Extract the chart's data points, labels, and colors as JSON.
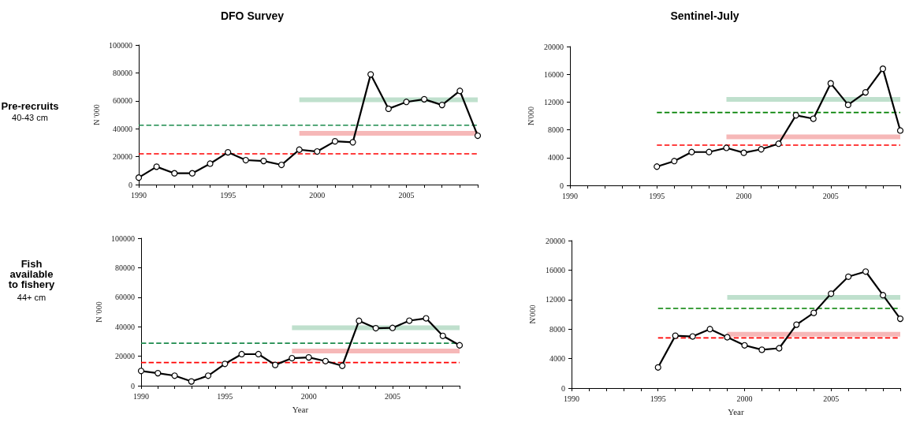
{
  "chart_data": [
    {
      "type": "line",
      "title": "DFO Survey",
      "ylabel": "N '000",
      "annotations": [
        "Pre-recruits",
        "40-43 cm"
      ],
      "xlim": [
        1990,
        2009
      ],
      "ylim": [
        0,
        100000
      ],
      "yticks": [
        0,
        20000,
        40000,
        60000,
        80000,
        100000
      ],
      "xticks": [
        1990,
        {
          "value": 1991,
          "label": null
        },
        {
          "value": 1992,
          "label": null
        },
        {
          "value": 1993,
          "label": null
        },
        {
          "value": 1994,
          "label": null
        },
        1995,
        {
          "value": 1996,
          "label": null
        },
        {
          "value": 1997,
          "label": null
        },
        {
          "value": 1998,
          "label": null
        },
        {
          "value": 1999,
          "label": null
        },
        2000,
        {
          "value": 2001,
          "label": null
        },
        {
          "value": 2002,
          "label": null
        },
        {
          "value": 2003,
          "label": null
        },
        {
          "value": 2004,
          "label": null
        },
        2005,
        {
          "value": 2006,
          "label": null
        },
        {
          "value": 2007,
          "label": null
        },
        {
          "value": 2008,
          "label": null
        },
        {
          "value": 2009,
          "label": null
        }
      ],
      "grid": false,
      "series": [
        {
          "color": "#1b8a4c",
          "line_style": "dashed",
          "marker": "none",
          "x": [
            1990,
            2009
          ],
          "values": [
            42500,
            42500
          ]
        },
        {
          "color": "#ff0000",
          "line_style": "dashed",
          "marker": "none",
          "x": [
            1990,
            2009
          ],
          "values": [
            22000,
            22000
          ]
        },
        {
          "color": "#bfe0cd",
          "line_style": "solid",
          "marker": "none",
          "x": [
            1999,
            2009
          ],
          "values": [
            60700,
            60700
          ]
        },
        {
          "color": "#f6b8b8",
          "line_style": "solid",
          "marker": "none",
          "x": [
            1999,
            2009
          ],
          "values": [
            36700,
            36700
          ]
        },
        {
          "color": "#000000",
          "line_style": "solid",
          "marker": "circle",
          "x": [
            1990,
            1991,
            1992,
            1993,
            1994,
            1995,
            1996,
            1997,
            1998,
            1999,
            2000,
            2001,
            2002,
            2003,
            2004,
            2005,
            2006,
            2007,
            2008,
            2009
          ],
          "values": [
            5000,
            12800,
            8100,
            8100,
            15000,
            23100,
            17500,
            16900,
            14100,
            25000,
            23700,
            31000,
            30300,
            78900,
            54300,
            59200,
            61100,
            57000,
            67100,
            35000
          ]
        }
      ]
    },
    {
      "type": "line",
      "title": "Sentinel-July",
      "ylabel": "N'000",
      "xlim": [
        1990,
        2009
      ],
      "ylim": [
        0,
        20000
      ],
      "yticks": [
        0,
        4000,
        8000,
        12000,
        16000,
        20000
      ],
      "xticks": [
        1990,
        {
          "value": 1991,
          "label": null
        },
        {
          "value": 1992,
          "label": null
        },
        {
          "value": 1993,
          "label": null
        },
        {
          "value": 1994,
          "label": null
        },
        1995,
        {
          "value": 1996,
          "label": null
        },
        {
          "value": 1997,
          "label": null
        },
        {
          "value": 1998,
          "label": null
        },
        {
          "value": 1999,
          "label": null
        },
        2000,
        {
          "value": 2001,
          "label": null
        },
        {
          "value": 2002,
          "label": null
        },
        {
          "value": 2003,
          "label": null
        },
        {
          "value": 2004,
          "label": null
        },
        2005,
        {
          "value": 2006,
          "label": null
        },
        {
          "value": 2007,
          "label": null
        },
        {
          "value": 2008,
          "label": null
        },
        {
          "value": 2009,
          "label": null
        }
      ],
      "grid": false,
      "series": [
        {
          "color": "#008000",
          "line_style": "dashed",
          "marker": "none",
          "x": [
            1995,
            2009
          ],
          "values": [
            10500,
            10500
          ]
        },
        {
          "color": "#ff0000",
          "line_style": "dashed",
          "marker": "none",
          "x": [
            1995,
            2009
          ],
          "values": [
            5800,
            5800
          ]
        },
        {
          "color": "#bfe0cd",
          "line_style": "solid",
          "marker": "none",
          "x": [
            1999,
            2009
          ],
          "values": [
            12400,
            12400
          ]
        },
        {
          "color": "#f6b8b8",
          "line_style": "solid",
          "marker": "none",
          "x": [
            1999,
            2009
          ],
          "values": [
            7000,
            7000
          ]
        },
        {
          "color": "#000000",
          "line_style": "solid",
          "marker": "circle",
          "x": [
            1995,
            1996,
            1997,
            1998,
            1999,
            2000,
            2001,
            2002,
            2003,
            2004,
            2005,
            2006,
            2007,
            2008,
            2009
          ],
          "values": [
            2700,
            3500,
            4800,
            4800,
            5400,
            4700,
            5200,
            6000,
            10100,
            9600,
            14700,
            11600,
            13400,
            16800,
            7900
          ]
        }
      ]
    },
    {
      "type": "line",
      "xlabel": "Year",
      "ylabel": "N '000",
      "annotations": [
        "Fish\navailable\nto fishery",
        "44+ cm"
      ],
      "xlim": [
        1990,
        2009
      ],
      "ylim": [
        0,
        100000
      ],
      "yticks": [
        0,
        20000,
        40000,
        60000,
        80000,
        100000
      ],
      "xticks": [
        1990,
        {
          "value": 1991,
          "label": null
        },
        {
          "value": 1992,
          "label": null
        },
        {
          "value": 1993,
          "label": null
        },
        {
          "value": 1994,
          "label": null
        },
        1995,
        {
          "value": 1996,
          "label": null
        },
        {
          "value": 1997,
          "label": null
        },
        {
          "value": 1998,
          "label": null
        },
        {
          "value": 1999,
          "label": null
        },
        2000,
        {
          "value": 2001,
          "label": null
        },
        {
          "value": 2002,
          "label": null
        },
        {
          "value": 2003,
          "label": null
        },
        {
          "value": 2004,
          "label": null
        },
        2005,
        {
          "value": 2006,
          "label": null
        },
        {
          "value": 2007,
          "label": null
        },
        {
          "value": 2008,
          "label": null
        },
        {
          "value": 2009,
          "label": null
        }
      ],
      "grid": false,
      "series": [
        {
          "color": "#1b8a4c",
          "line_style": "dashed",
          "marker": "none",
          "x": [
            1990,
            2009
          ],
          "values": [
            28800,
            28800
          ]
        },
        {
          "color": "#ff0000",
          "line_style": "dashed",
          "marker": "none",
          "x": [
            1990,
            2009
          ],
          "values": [
            15700,
            15700
          ]
        },
        {
          "color": "#bfe0cd",
          "line_style": "solid",
          "marker": "none",
          "x": [
            1999,
            2009
          ],
          "values": [
            39300,
            39300
          ]
        },
        {
          "color": "#f6b8b8",
          "line_style": "solid",
          "marker": "none",
          "x": [
            1999,
            2009
          ],
          "values": [
            23500,
            23500
          ]
        },
        {
          "color": "#000000",
          "line_style": "solid",
          "marker": "circle",
          "x": [
            1990,
            1991,
            1992,
            1993,
            1994,
            1995,
            1996,
            1997,
            1998,
            1999,
            2000,
            2001,
            2002,
            2003,
            2004,
            2005,
            2006,
            2007,
            2008,
            2009
          ],
          "values": [
            10000,
            8500,
            6800,
            2900,
            6800,
            14800,
            21400,
            21400,
            14100,
            18700,
            19200,
            16700,
            13500,
            44000,
            39000,
            39200,
            44100,
            45700,
            33800,
            27400
          ]
        }
      ]
    },
    {
      "type": "line",
      "xlabel": "Year",
      "ylabel": "N'000",
      "xlim": [
        1990,
        2009
      ],
      "ylim": [
        0,
        20000
      ],
      "yticks": [
        0,
        4000,
        8000,
        12000,
        16000,
        20000
      ],
      "xticks": [
        1990,
        {
          "value": 1991,
          "label": null
        },
        {
          "value": 1992,
          "label": null
        },
        {
          "value": 1993,
          "label": null
        },
        {
          "value": 1994,
          "label": null
        },
        1995,
        {
          "value": 1996,
          "label": null
        },
        {
          "value": 1997,
          "label": null
        },
        {
          "value": 1998,
          "label": null
        },
        {
          "value": 1999,
          "label": null
        },
        2000,
        {
          "value": 2001,
          "label": null
        },
        {
          "value": 2002,
          "label": null
        },
        {
          "value": 2003,
          "label": null
        },
        {
          "value": 2004,
          "label": null
        },
        2005,
        {
          "value": 2006,
          "label": null
        },
        {
          "value": 2007,
          "label": null
        },
        {
          "value": 2008,
          "label": null
        },
        {
          "value": 2009,
          "label": null
        }
      ],
      "grid": false,
      "series": [
        {
          "color": "#008000",
          "line_style": "dashed",
          "marker": "none",
          "x": [
            1995,
            2009
          ],
          "values": [
            10800,
            10800
          ]
        },
        {
          "color": "#ff0000",
          "line_style": "dashed",
          "marker": "none",
          "x": [
            1995,
            2009
          ],
          "values": [
            6800,
            6800
          ]
        },
        {
          "color": "#bfe0cd",
          "line_style": "solid",
          "marker": "none",
          "x": [
            1999,
            2009
          ],
          "values": [
            12300,
            12300
          ]
        },
        {
          "color": "#f6b8b8",
          "line_style": "solid",
          "marker": "none",
          "x": [
            1999,
            2009
          ],
          "values": [
            7300,
            7300
          ]
        },
        {
          "color": "#000000",
          "line_style": "solid",
          "marker": "circle",
          "x": [
            1995,
            1996,
            1997,
            1998,
            1999,
            2000,
            2001,
            2002,
            2003,
            2004,
            2005,
            2006,
            2007,
            2008,
            2009
          ],
          "values": [
            2800,
            7100,
            7000,
            8000,
            6900,
            5800,
            5200,
            5400,
            8600,
            10200,
            12800,
            15100,
            15800,
            12600,
            9400
          ]
        }
      ]
    }
  ]
}
